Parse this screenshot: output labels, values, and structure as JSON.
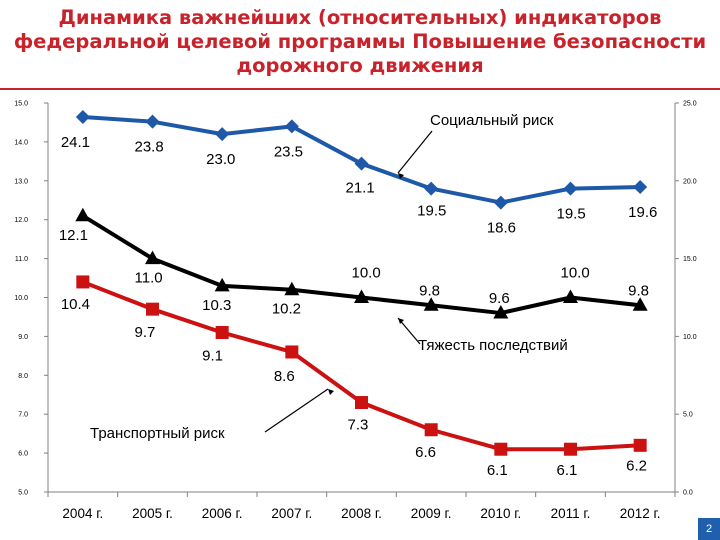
{
  "title": "Динамика важнейших (относительных) индикаторов федеральной целевой программы Повышение безопасности дорожного движения",
  "page_number": "2",
  "colors": {
    "social": "#1e58a8",
    "severity": "#000000",
    "transport": "#cc1111",
    "title": "#c8232b"
  },
  "chart_data": {
    "type": "line",
    "categories": [
      "2004 г.",
      "2005 г.",
      "2006 г.",
      "2007 г.",
      "2008 г.",
      "2009 г.",
      "2010 г.",
      "2011 г.",
      "2012 г."
    ],
    "left_axis": {
      "ylim": [
        5.0,
        15.0
      ],
      "ticks": [
        "5.0",
        "6.0",
        "7.0",
        "8.0",
        "9.0",
        "10.0",
        "11.0",
        "12.0",
        "13.0",
        "14.0",
        "15.0"
      ]
    },
    "right_axis": {
      "ylim": [
        0.0,
        25.0
      ],
      "ticks": [
        "0.0",
        "5.0",
        "10.0",
        "15.0",
        "20.0",
        "25.0"
      ]
    },
    "series": [
      {
        "name": "Социальный риск",
        "axis": "right",
        "marker": "diamond",
        "color": "#1e58a8",
        "values": [
          24.1,
          23.8,
          23.0,
          23.5,
          21.1,
          19.5,
          18.6,
          19.5,
          19.6
        ],
        "labels": [
          "24.1",
          "23.8",
          "23.0",
          "23.5",
          "21.1",
          "19.5",
          "18.6",
          "19.5",
          "19.6"
        ]
      },
      {
        "name": "Тяжесть последствий",
        "axis": "left",
        "marker": "triangle",
        "color": "#000000",
        "values": [
          12.1,
          11.0,
          10.3,
          10.2,
          10.0,
          9.8,
          9.6,
          10.0,
          9.8
        ],
        "labels": [
          "12.1",
          "11.0",
          "10.3",
          "10.2",
          "10.0",
          "9.8",
          "9.6",
          "10.0",
          "9.8"
        ]
      },
      {
        "name": "Транспортный риск",
        "axis": "left",
        "marker": "square",
        "color": "#cc1111",
        "values": [
          10.4,
          9.7,
          9.1,
          8.6,
          7.3,
          6.6,
          6.1,
          6.1,
          6.2
        ],
        "labels": [
          "10.4",
          "9.7",
          "9.1",
          "8.6",
          "7.3",
          "6.6",
          "6.1",
          "6.1",
          "6.2"
        ]
      }
    ],
    "grid": false,
    "legend": "callouts"
  }
}
